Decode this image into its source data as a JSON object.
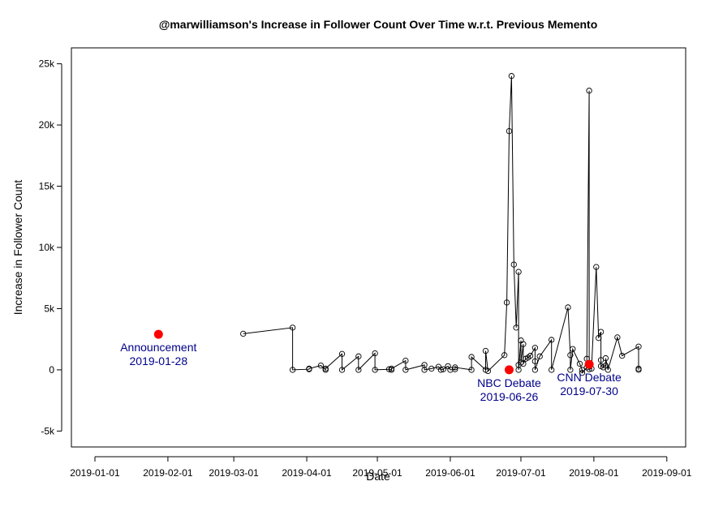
{
  "chart_data": {
    "type": "scatter",
    "title": "@marwilliamson's Increase in Follower Count Over Time w.r.t. Previous Memento",
    "xlabel": "Date",
    "ylabel": "Increase in Follower Count",
    "xlim": [
      "2018-12-22",
      "2019-09-09"
    ],
    "ylim": [
      -6300,
      26300
    ],
    "grid": false,
    "xticks": [
      "2019-01-01",
      "2019-02-01",
      "2019-03-01",
      "2019-04-01",
      "2019-05-01",
      "2019-06-01",
      "2019-07-01",
      "2019-08-01",
      "2019-09-01"
    ],
    "yticks": [
      {
        "value": -5000,
        "label": "-5k"
      },
      {
        "value": 0,
        "label": "0"
      },
      {
        "value": 5000,
        "label": "5k"
      },
      {
        "value": 10000,
        "label": "10k"
      },
      {
        "value": 15000,
        "label": "15k"
      },
      {
        "value": 20000,
        "label": "20k"
      },
      {
        "value": 25000,
        "label": "25k"
      }
    ],
    "series": [
      {
        "line_color": "#000000",
        "marker": "open-circle",
        "points": [
          {
            "x": "2019-03-05",
            "y": 2950
          },
          {
            "x": "2019-03-26",
            "y": 3450
          },
          {
            "x": "2019-03-26",
            "y": 0
          },
          {
            "x": "2019-04-02",
            "y": 50
          },
          {
            "x": "2019-04-02",
            "y": 100
          },
          {
            "x": "2019-04-07",
            "y": 350
          },
          {
            "x": "2019-04-09",
            "y": 0
          },
          {
            "x": "2019-04-09",
            "y": 100
          },
          {
            "x": "2019-04-16",
            "y": 1300
          },
          {
            "x": "2019-04-16",
            "y": 0
          },
          {
            "x": "2019-04-23",
            "y": 1100
          },
          {
            "x": "2019-04-23",
            "y": 0
          },
          {
            "x": "2019-04-30",
            "y": 1350
          },
          {
            "x": "2019-04-30",
            "y": 0
          },
          {
            "x": "2019-05-06",
            "y": 50
          },
          {
            "x": "2019-05-07",
            "y": 0
          },
          {
            "x": "2019-05-07",
            "y": 100
          },
          {
            "x": "2019-05-13",
            "y": 750
          },
          {
            "x": "2019-05-13",
            "y": 0
          },
          {
            "x": "2019-05-21",
            "y": 400
          },
          {
            "x": "2019-05-21",
            "y": 0
          },
          {
            "x": "2019-05-24",
            "y": 100
          },
          {
            "x": "2019-05-27",
            "y": 250
          },
          {
            "x": "2019-05-28",
            "y": 0
          },
          {
            "x": "2019-05-29",
            "y": 50
          },
          {
            "x": "2019-05-31",
            "y": 300
          },
          {
            "x": "2019-06-01",
            "y": 0
          },
          {
            "x": "2019-06-03",
            "y": 50
          },
          {
            "x": "2019-06-03",
            "y": 200
          },
          {
            "x": "2019-06-10",
            "y": 0
          },
          {
            "x": "2019-06-10",
            "y": 1050
          },
          {
            "x": "2019-06-16",
            "y": 0
          },
          {
            "x": "2019-06-16",
            "y": 1550
          },
          {
            "x": "2019-06-17",
            "y": -100
          },
          {
            "x": "2019-06-24",
            "y": 1200
          },
          {
            "x": "2019-06-25",
            "y": 5500
          },
          {
            "x": "2019-06-26",
            "y": 19500
          },
          {
            "x": "2019-06-27",
            "y": 24000
          },
          {
            "x": "2019-06-28",
            "y": 8600
          },
          {
            "x": "2019-06-29",
            "y": 3450
          },
          {
            "x": "2019-06-30",
            "y": 8000
          },
          {
            "x": "2019-06-30",
            "y": 400
          },
          {
            "x": "2019-06-30",
            "y": 0
          },
          {
            "x": "2019-07-01",
            "y": 2400
          },
          {
            "x": "2019-07-01",
            "y": 600
          },
          {
            "x": "2019-07-02",
            "y": 2100
          },
          {
            "x": "2019-07-02",
            "y": 500
          },
          {
            "x": "2019-07-03",
            "y": 900
          },
          {
            "x": "2019-07-04",
            "y": 1000
          },
          {
            "x": "2019-07-05",
            "y": 1150
          },
          {
            "x": "2019-07-07",
            "y": 1800
          },
          {
            "x": "2019-07-07",
            "y": 700
          },
          {
            "x": "2019-07-07",
            "y": 0
          },
          {
            "x": "2019-07-09",
            "y": 1100
          },
          {
            "x": "2019-07-14",
            "y": 2450
          },
          {
            "x": "2019-07-14",
            "y": 0
          },
          {
            "x": "2019-07-21",
            "y": 5100
          },
          {
            "x": "2019-07-22",
            "y": 1200
          },
          {
            "x": "2019-07-22",
            "y": 0
          },
          {
            "x": "2019-07-23",
            "y": 1700
          },
          {
            "x": "2019-07-26",
            "y": 500
          },
          {
            "x": "2019-07-27",
            "y": 0
          },
          {
            "x": "2019-07-27",
            "y": -250
          },
          {
            "x": "2019-07-29",
            "y": 200
          },
          {
            "x": "2019-07-29",
            "y": 900
          },
          {
            "x": "2019-07-30",
            "y": 22800
          },
          {
            "x": "2019-07-30",
            "y": 50
          },
          {
            "x": "2019-07-31",
            "y": 100
          },
          {
            "x": "2019-08-02",
            "y": 8400
          },
          {
            "x": "2019-08-03",
            "y": 2600
          },
          {
            "x": "2019-08-04",
            "y": 3100
          },
          {
            "x": "2019-08-04",
            "y": 800
          },
          {
            "x": "2019-08-04",
            "y": 300
          },
          {
            "x": "2019-08-05",
            "y": 200
          },
          {
            "x": "2019-08-06",
            "y": 350
          },
          {
            "x": "2019-08-06",
            "y": 950
          },
          {
            "x": "2019-08-07",
            "y": 0
          },
          {
            "x": "2019-08-11",
            "y": 2650
          },
          {
            "x": "2019-08-13",
            "y": 1150
          },
          {
            "x": "2019-08-20",
            "y": 1900
          },
          {
            "x": "2019-08-20",
            "y": 0
          },
          {
            "x": "2019-08-20",
            "y": 100
          }
        ]
      }
    ],
    "events": [
      {
        "label": "Announcement",
        "date_label": "2019-01-28",
        "x": "2019-01-28",
        "y": 2900,
        "color": "#ff0000",
        "text_color": "#00008b",
        "label_placement": "below"
      },
      {
        "label": "NBC Debate",
        "date_label": "2019-06-26",
        "x": "2019-06-26",
        "y": 0,
        "color": "#ff0000",
        "text_color": "#00008b",
        "label_placement": "below"
      },
      {
        "label": "CNN Debate",
        "date_label": "2019-07-30",
        "x": "2019-07-30",
        "y": 450,
        "color": "#ff0000",
        "text_color": "#00008b",
        "label_placement": "below"
      }
    ]
  }
}
